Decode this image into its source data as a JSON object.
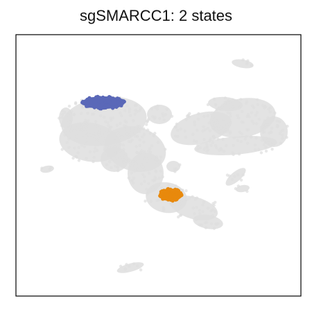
{
  "chart_data": {
    "type": "scatter",
    "title": "sgSMARCC1: 2 states",
    "xlabel": "",
    "ylabel": "",
    "axes_ticks": false,
    "background_color": "#dedede",
    "states": [
      {
        "color": "#5a68b8"
      },
      {
        "color": "#e8890c"
      }
    ]
  }
}
